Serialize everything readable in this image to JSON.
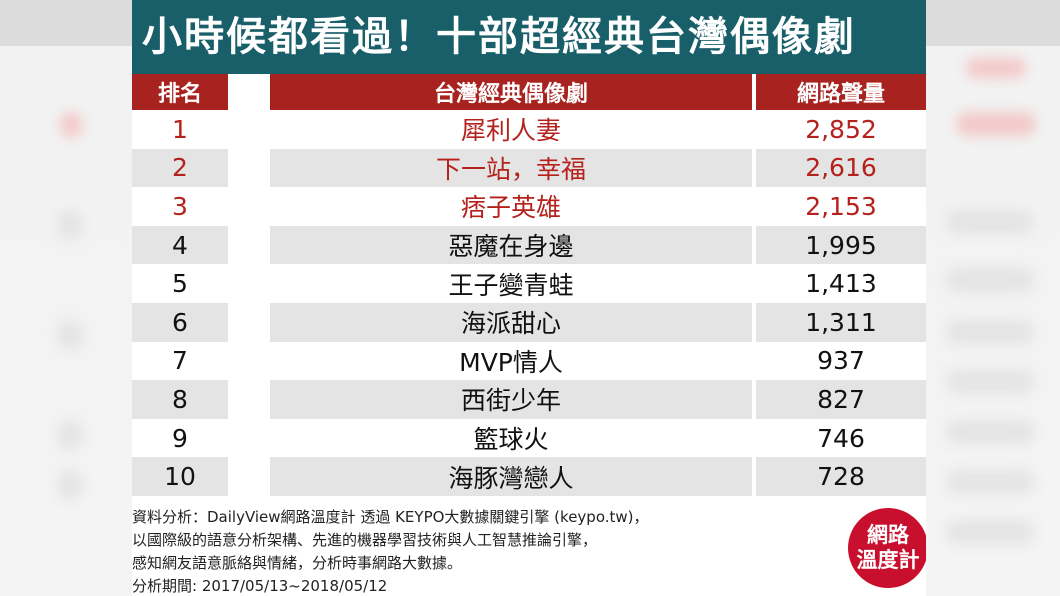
{
  "title": "小時候都看過！十部超經典台灣偶像劇",
  "table": {
    "headers": {
      "rank": "排名",
      "drama": "台灣經典偶像劇",
      "score": "網路聲量"
    },
    "rows": [
      {
        "rank": "1",
        "drama": "犀利人妻",
        "score": "2,852"
      },
      {
        "rank": "2",
        "drama": "下一站，幸福",
        "score": "2,616"
      },
      {
        "rank": "3",
        "drama": "痞子英雄",
        "score": "2,153"
      },
      {
        "rank": "4",
        "drama": "惡魔在身邊",
        "score": "1,995"
      },
      {
        "rank": "5",
        "drama": "王子變青蛙",
        "score": "1,413"
      },
      {
        "rank": "6",
        "drama": "海派甜心",
        "score": "1,311"
      },
      {
        "rank": "7",
        "drama": "MVP情人",
        "score": "937"
      },
      {
        "rank": "8",
        "drama": "西街少年",
        "score": "827"
      },
      {
        "rank": "9",
        "drama": "籃球火",
        "score": "746"
      },
      {
        "rank": "10",
        "drama": "海豚灣戀人",
        "score": "728"
      }
    ]
  },
  "source": {
    "line1": "資料分析：DailyView網路溫度計 透過 KEYPO大數據關鍵引擎 (keypo.tw)，",
    "line2": "以國際級的語意分析架構、先進的機器學習技術與人工智慧推論引擎，",
    "line3": "感知網友語意脈絡與情緒，分析時事網路大數據。",
    "line4": "分析期間: 2017/05/13~2018/05/12"
  },
  "logo": {
    "line1": "網路",
    "line2": "溫度計"
  },
  "colors": {
    "title_bar": "#195f6a",
    "header_bar": "#a8231f",
    "top_three_text": "#b5211c",
    "alt_row": "#e4e4e4",
    "logo": "#c8102e"
  }
}
